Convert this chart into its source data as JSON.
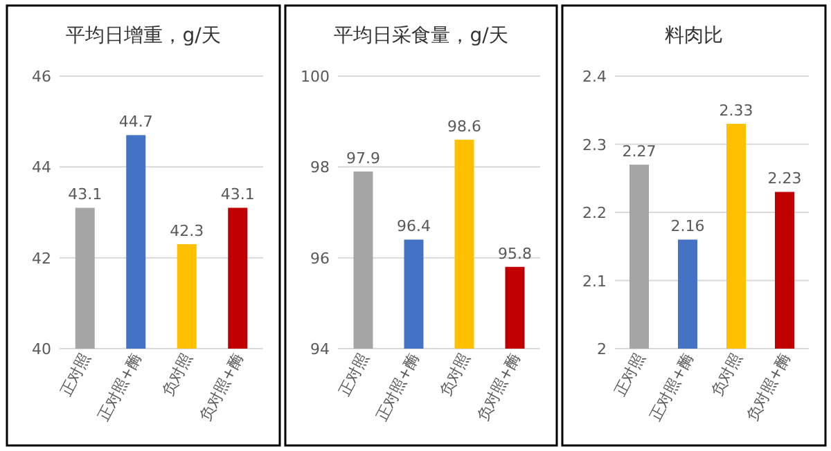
{
  "chart_data": [
    {
      "type": "bar",
      "title": "平均日增重，g/天",
      "categories": [
        "正对照",
        "正对照+酶",
        "负对照",
        "负对照+酶"
      ],
      "values": [
        43.1,
        44.7,
        42.3,
        43.1
      ],
      "colors": [
        "#a5a5a5",
        "#4472c4",
        "#ffc000",
        "#c00000"
      ],
      "ylim": [
        40,
        46
      ],
      "yticks": [
        40,
        42,
        44,
        46
      ],
      "grid": "y",
      "data_labels": true
    },
    {
      "type": "bar",
      "title": "平均日采食量，g/天",
      "categories": [
        "正对照",
        "正对照+酶",
        "负对照",
        "负对照+酶"
      ],
      "values": [
        97.9,
        96.4,
        98.6,
        95.8
      ],
      "colors": [
        "#a5a5a5",
        "#4472c4",
        "#ffc000",
        "#c00000"
      ],
      "ylim": [
        94,
        100
      ],
      "yticks": [
        94,
        96,
        98,
        100
      ],
      "grid": "y",
      "data_labels": true
    },
    {
      "type": "bar",
      "title": "料肉比",
      "categories": [
        "正对照",
        "正对照+酶",
        "负对照",
        "负对照+酶"
      ],
      "values": [
        2.27,
        2.16,
        2.33,
        2.23
      ],
      "colors": [
        "#a5a5a5",
        "#4472c4",
        "#ffc000",
        "#c00000"
      ],
      "ylim": [
        2,
        2.4
      ],
      "yticks": [
        2,
        2.1,
        2.2,
        2.3,
        2.4
      ],
      "grid": "y",
      "data_labels": true
    }
  ]
}
